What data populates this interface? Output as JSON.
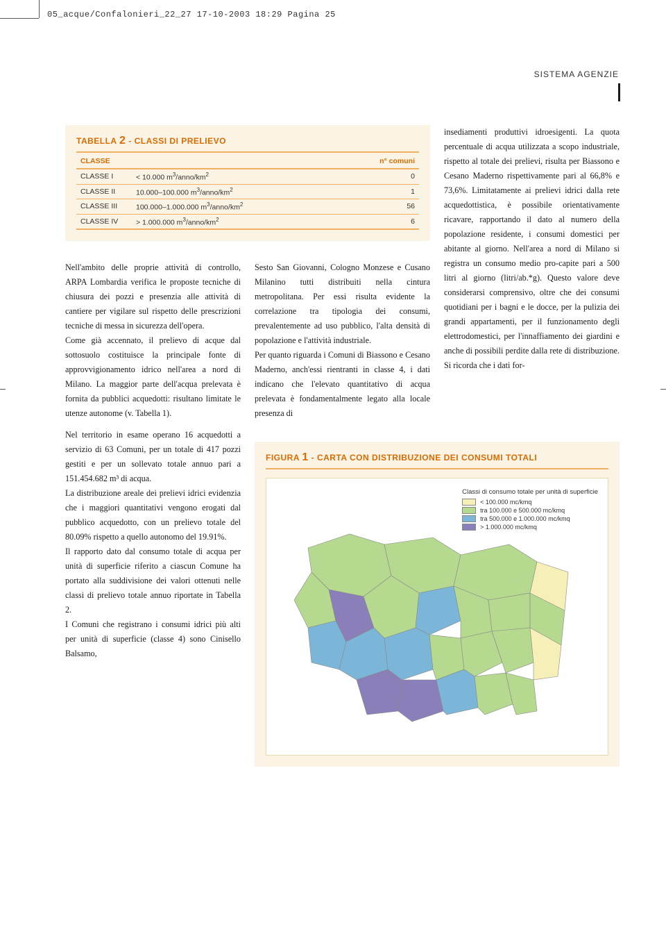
{
  "meta_line": "05_acque/Confalonieri_22_27  17-10-2003  18:29  Pagina 25",
  "section_label": "SISTEMA AGENZIE",
  "table": {
    "title_prefix": "TABELLA ",
    "title_num": "2",
    "title_suffix": " - CLASSI DI PRELIEVO",
    "background": "#fbf4e4",
    "accent": "#d96b00",
    "rule": "#f0b060",
    "header_class": "CLASSE",
    "header_count": "n° comuni",
    "rows": [
      {
        "label": "CLASSE I",
        "desc": "< 10.000 m³/anno/km²",
        "count": "0"
      },
      {
        "label": "CLASSE II",
        "desc": "10.000–100.000 m³/anno/km²",
        "count": "1"
      },
      {
        "label": "CLASSE III",
        "desc": "100.000–1.000.000 m³/anno/km²",
        "count": "56"
      },
      {
        "label": "CLASSE IV",
        "desc": "> 1.000.000 m³/anno/km²",
        "count": "6"
      }
    ]
  },
  "body": {
    "col1a": "Nell'ambito delle proprie attività di controllo, ARPA Lombardia verifica le proposte tecniche di chiusura dei pozzi e presenzia alle attività di cantiere per vigilare sul rispetto delle prescrizioni tecniche di messa in sicurezza dell'opera.",
    "col1b": "Come già accennato, il prelievo di acque dal sottosuolo costituisce la principale fonte di approvvigionamento idrico nell'area a nord di Milano. La maggior parte dell'acqua prelevata è fornita da pubblici acquedotti: risultano limitate le utenze autonome (v. Tabella 1).",
    "col1c": "Nel territorio in esame operano 16 acquedotti a servizio di 63 Comuni, per un totale di 417 pozzi gestiti e per un sollevato totale annuo pari a 151.454.682 m³ di acqua.",
    "col1d": "La distribuzione areale dei prelievi idrici evidenzia che i maggiori quantitativi vengono erogati dal pubblico acquedotto, con un prelievo totale del 80.09% rispetto a quello autonomo del 19.91%.",
    "col1e": "Il rapporto dato dal consumo totale di acqua per unità di superficie riferito a ciascun Comune ha portato alla suddivisione dei valori ottenuti nelle classi di prelievo totale annuo riportate in Tabella 2.",
    "col1f": "I Comuni che registrano i consumi idrici più alti per unità di superficie (classe 4) sono Cinisello Balsamo,",
    "col2a": "Sesto San Giovanni, Cologno Monzese e Cusano Milanino tutti distribuiti nella cintura metropolitana. Per essi risulta evidente la correlazione tra tipologia dei consumi, prevalentemente ad uso pubblico, l'alta densità di popolazione e l'attività industriale.",
    "col2b": "Per quanto riguarda i Comuni di Biassono e Cesano Maderno, anch'essi rientranti in classe 4, i dati indicano che l'elevato quantitativo di acqua prelevata è fondamentalmente legato alla locale presenza di",
    "col3": "insediamenti produttivi idroesigenti. La quota percentuale di acqua utilizzata a scopo industriale, rispetto al totale dei prelievi, risulta per Biassono e Cesano Maderno rispettivamente pari al 66,8% e 73,6%. Limitatamente ai prelievi idrici dalla rete acquedottistica, è possibile orientativamente ricavare, rapportando il dato al numero della popolazione residente, i consumi domestici per abitante al giorno. Nell'area a nord di Milano si registra un consumo medio pro-capite pari a 500 litri al giorno (litri/ab.*g). Questo valore deve considerarsi comprensivo, oltre che dei consumi quotidiani per i bagni e le docce, per la pulizia dei grandi appartamenti, per il funzionamento degli elettrodomestici, per l'innaffiamento dei giardini e anche di possibili perdite dalla rete di distribuzione. Si ricorda che i dati for-"
  },
  "figure": {
    "title_prefix": "FIGURA ",
    "title_num": "1",
    "title_suffix": " - CARTA CON DISTRIBUZIONE DEI CONSUMI TOTALI",
    "legend_title": "Classi di consumo totale per unità di superficie",
    "legend": [
      {
        "color": "#f6f0b8",
        "label": "< 100.000 mc/kmq"
      },
      {
        "color": "#b5d98f",
        "label": "tra 100.000 e 500.000 mc/kmq"
      },
      {
        "color": "#7bb6d9",
        "label": "tra 500.000 e 1.000.000 mc/kmq"
      },
      {
        "color": "#8a7fb8",
        "label": "> 1.000.000 mc/kmq"
      }
    ],
    "map_colors": {
      "dominant": "#b5d98f",
      "mid": "#7bb6d9",
      "high": "#8a7fb8",
      "low": "#f6f0b8",
      "border": "#888888"
    }
  }
}
